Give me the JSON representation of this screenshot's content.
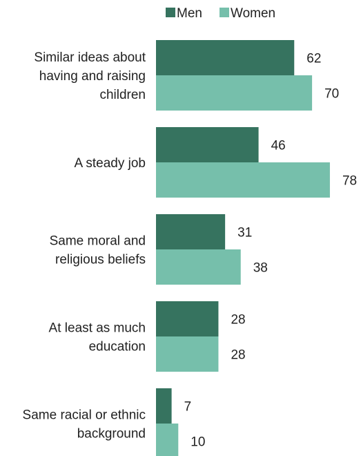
{
  "chart_data": {
    "type": "bar",
    "orientation": "horizontal",
    "categories": [
      [
        "Similar ideas about",
        "having and raising",
        "children"
      ],
      [
        "A steady job"
      ],
      [
        "Same moral and",
        "religious beliefs"
      ],
      [
        "At least as much",
        "education"
      ],
      [
        "Same racial or ethnic",
        "background"
      ]
    ],
    "series": [
      {
        "name": "Men",
        "color": "#36735f",
        "values": [
          62,
          46,
          31,
          28,
          7
        ]
      },
      {
        "name": "Women",
        "color": "#76bfab",
        "values": [
          70,
          78,
          38,
          28,
          10
        ]
      }
    ],
    "xlim": [
      0,
      78
    ],
    "legend_position": "top",
    "grid": false
  }
}
